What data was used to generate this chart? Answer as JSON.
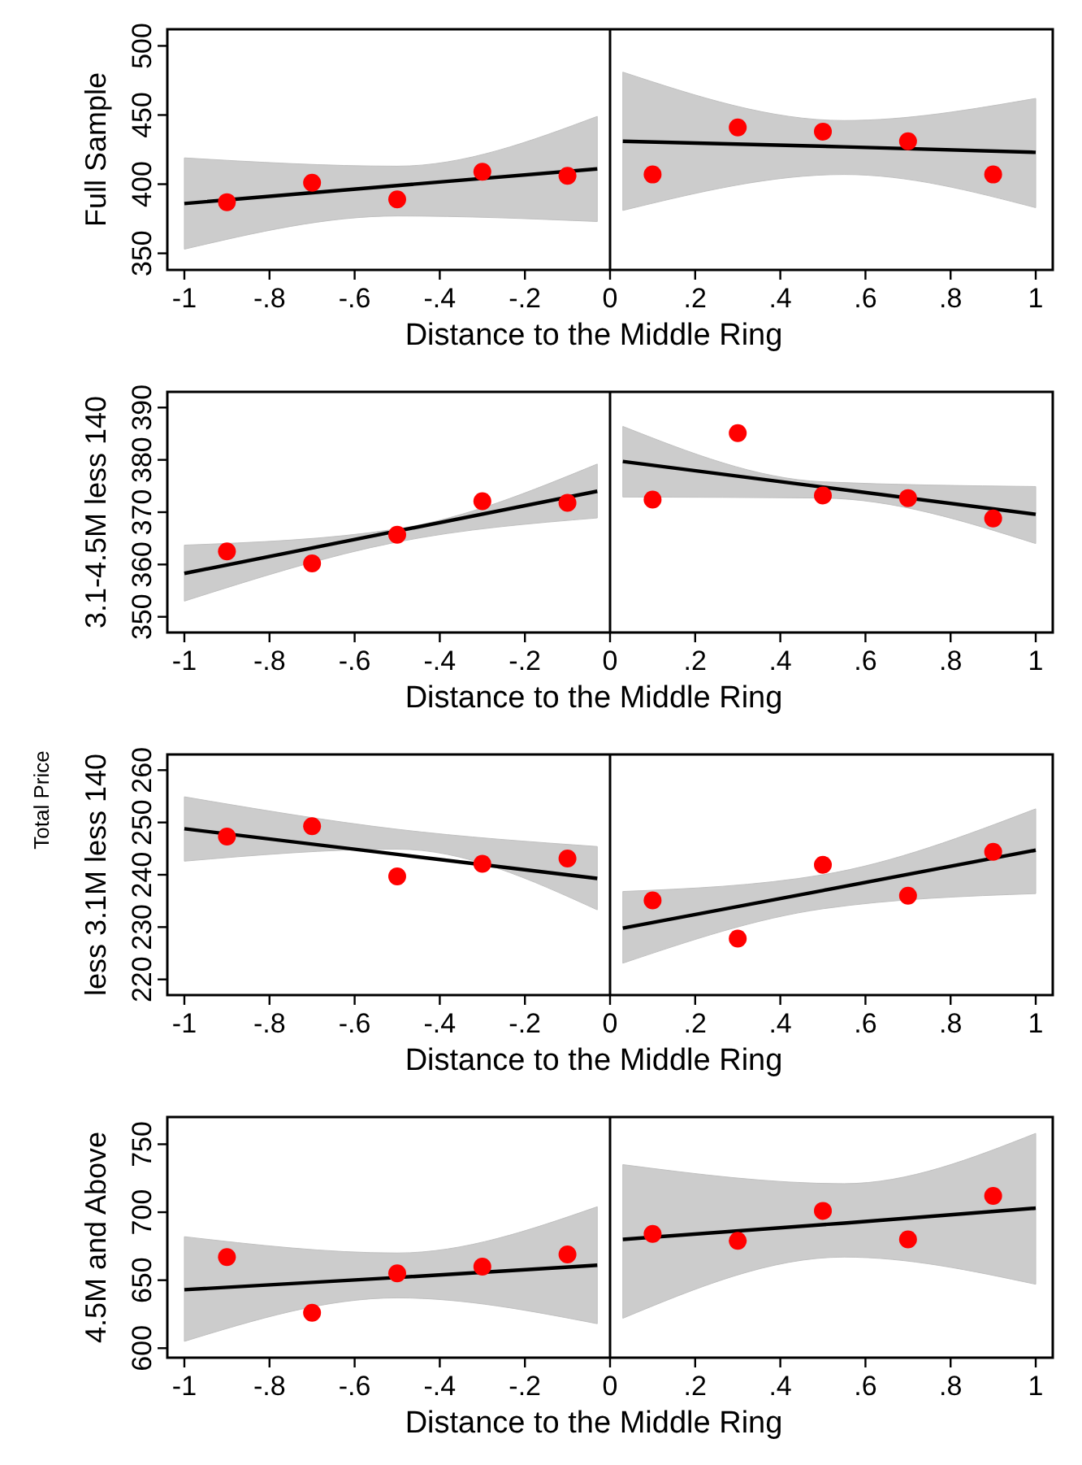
{
  "chart_data": [
    {
      "type": "scatter",
      "xlabel": "Distance to the Middle Ring",
      "ylabel": "Full Sample",
      "xlim": [
        -1.04,
        1.04
      ],
      "xticks": [
        -1,
        {
          "value": -0.8,
          "label": "-.8"
        },
        {
          "value": -0.6,
          "label": "-.6"
        },
        {
          "value": -0.4,
          "label": "-.4"
        },
        {
          "value": -0.2,
          "label": "-.2"
        },
        0,
        {
          "value": 0.2,
          "label": ".2"
        },
        {
          "value": 0.4,
          "label": ".4"
        },
        {
          "value": 0.6,
          "label": ".6"
        },
        {
          "value": 0.8,
          "label": ".8"
        },
        1
      ],
      "ylim": [
        338,
        512
      ],
      "yticks": [
        350,
        400,
        450,
        500
      ],
      "grid": false,
      "ref_lines": [
        {
          "axis": "x",
          "value": 0,
          "color": "#000000"
        }
      ],
      "series": [
        {
          "color": "#ff0000",
          "marker": "circle",
          "x": [
            -0.9,
            -0.7,
            -0.5,
            -0.3,
            -0.1,
            0.1,
            0.3,
            0.5,
            0.7,
            0.9
          ],
          "values": [
            387,
            401,
            389,
            409,
            406,
            407,
            441,
            438,
            431,
            407
          ]
        },
        {
          "type": "line",
          "marker": "none",
          "color": "#000000",
          "x": [
            -1,
            -0.5,
            -0.03
          ],
          "values": [
            386,
            399,
            411
          ],
          "lower": [
            353,
            377,
            373
          ],
          "upper": [
            419,
            413,
            449
          ]
        },
        {
          "type": "line",
          "marker": "none",
          "color": "#000000",
          "x": [
            0.03,
            0.55,
            1
          ],
          "values": [
            431,
            427,
            423
          ],
          "lower": [
            381,
            407,
            383
          ],
          "upper": [
            481,
            446,
            462
          ]
        }
      ]
    },
    {
      "type": "scatter",
      "xlabel": "Distance to the Middle Ring",
      "ylabel": "3.1-4.5M less 140",
      "xlim": [
        -1.04,
        1.04
      ],
      "xticks": [
        -1,
        {
          "value": -0.8,
          "label": "-.8"
        },
        {
          "value": -0.6,
          "label": "-.6"
        },
        {
          "value": -0.4,
          "label": "-.4"
        },
        {
          "value": -0.2,
          "label": "-.2"
        },
        0,
        {
          "value": 0.2,
          "label": ".2"
        },
        {
          "value": 0.4,
          "label": ".4"
        },
        {
          "value": 0.6,
          "label": ".6"
        },
        {
          "value": 0.8,
          "label": ".8"
        },
        1
      ],
      "ylim": [
        347,
        393
      ],
      "yticks": [
        350,
        360,
        370,
        380,
        390
      ],
      "grid": false,
      "ref_lines": [
        {
          "axis": "x",
          "value": 0,
          "color": "#000000"
        }
      ],
      "series": [
        {
          "color": "#ff0000",
          "marker": "circle",
          "x": [
            -0.9,
            -0.7,
            -0.5,
            -0.3,
            -0.1,
            0.1,
            0.3,
            0.5,
            0.7,
            0.9
          ],
          "values": [
            362.5,
            360.2,
            365.7,
            372.1,
            371.8,
            372.4,
            385.1,
            373.2,
            372.7,
            368.8
          ]
        },
        {
          "type": "line",
          "marker": "none",
          "color": "#000000",
          "x": [
            -1,
            -0.5,
            -0.03
          ],
          "values": [
            358.3,
            366.4,
            374
          ],
          "lower": [
            353,
            364.3,
            368.9
          ],
          "upper": [
            363.7,
            366.8,
            379.2
          ]
        },
        {
          "type": "line",
          "marker": "none",
          "color": "#000000",
          "x": [
            0.03,
            0.5,
            1
          ],
          "values": [
            379.7,
            374.8,
            369.6
          ],
          "lower": [
            372.9,
            372.7,
            364
          ],
          "upper": [
            386.4,
            375.8,
            374.9
          ]
        }
      ]
    },
    {
      "type": "scatter",
      "xlabel": "Distance to the Middle Ring",
      "ylabel": "less 3.1M less 140",
      "annotations": [
        "Total Price"
      ],
      "xlim": [
        -1.04,
        1.04
      ],
      "xticks": [
        -1,
        {
          "value": -0.8,
          "label": "-.8"
        },
        {
          "value": -0.6,
          "label": "-.6"
        },
        {
          "value": -0.4,
          "label": "-.4"
        },
        {
          "value": -0.2,
          "label": "-.2"
        },
        0,
        {
          "value": 0.2,
          "label": ".2"
        },
        {
          "value": 0.4,
          "label": ".4"
        },
        {
          "value": 0.6,
          "label": ".6"
        },
        {
          "value": 0.8,
          "label": ".8"
        },
        1
      ],
      "ylim": [
        217,
        263
      ],
      "yticks": [
        220,
        230,
        240,
        250,
        260
      ],
      "grid": false,
      "ref_lines": [
        {
          "axis": "x",
          "value": 0,
          "color": "#000000"
        }
      ],
      "series": [
        {
          "color": "#ff0000",
          "marker": "circle",
          "x": [
            -0.9,
            -0.7,
            -0.5,
            -0.3,
            -0.1,
            0.1,
            0.3,
            0.5,
            0.7,
            0.9
          ],
          "values": [
            247.3,
            249.3,
            239.7,
            242.1,
            243.1,
            235.1,
            227.8,
            241.9,
            236,
            244.4
          ]
        },
        {
          "type": "line",
          "marker": "none",
          "color": "#000000",
          "x": [
            -1,
            -0.5,
            -0.03
          ],
          "values": [
            248.8,
            243.9,
            239.3
          ],
          "lower": [
            242.6,
            244.9,
            233.3
          ],
          "upper": [
            254.9,
            248.7,
            245.4
          ]
        },
        {
          "type": "line",
          "marker": "none",
          "color": "#000000",
          "x": [
            0.03,
            0.5,
            1
          ],
          "values": [
            229.8,
            237,
            244.7
          ],
          "lower": [
            223.1,
            233.5,
            236.4
          ],
          "upper": [
            236.8,
            240,
            252.6
          ]
        }
      ]
    },
    {
      "type": "scatter",
      "xlabel": "Distance to the Middle Ring",
      "ylabel": "4.5M and Above",
      "xlim": [
        -1.04,
        1.04
      ],
      "xticks": [
        -1,
        {
          "value": -0.8,
          "label": "-.8"
        },
        {
          "value": -0.6,
          "label": "-.6"
        },
        {
          "value": -0.4,
          "label": "-.4"
        },
        {
          "value": -0.2,
          "label": "-.2"
        },
        0,
        {
          "value": 0.2,
          "label": ".2"
        },
        {
          "value": 0.4,
          "label": ".4"
        },
        {
          "value": 0.6,
          "label": ".6"
        },
        {
          "value": 0.8,
          "label": ".8"
        },
        1
      ],
      "ylim": [
        593,
        770
      ],
      "yticks": [
        600,
        650,
        700,
        750
      ],
      "grid": false,
      "ref_lines": [
        {
          "axis": "x",
          "value": 0,
          "color": "#000000"
        }
      ],
      "series": [
        {
          "color": "#ff0000",
          "marker": "circle",
          "x": [
            -0.9,
            -0.7,
            -0.5,
            -0.3,
            -0.1,
            0.1,
            0.3,
            0.5,
            0.7,
            0.9
          ],
          "values": [
            667,
            626,
            655,
            660,
            669,
            684,
            679,
            701,
            680,
            712
          ]
        },
        {
          "type": "line",
          "marker": "none",
          "color": "#000000",
          "x": [
            -1,
            -0.5,
            -0.03
          ],
          "values": [
            643,
            652,
            661
          ],
          "lower": [
            605,
            637,
            618
          ],
          "upper": [
            682,
            670,
            704
          ]
        },
        {
          "type": "line",
          "marker": "none",
          "color": "#000000",
          "x": [
            0.03,
            0.55,
            1
          ],
          "values": [
            680,
            692,
            703
          ],
          "lower": [
            622,
            667,
            647
          ],
          "upper": [
            735,
            721,
            758
          ]
        }
      ]
    }
  ]
}
